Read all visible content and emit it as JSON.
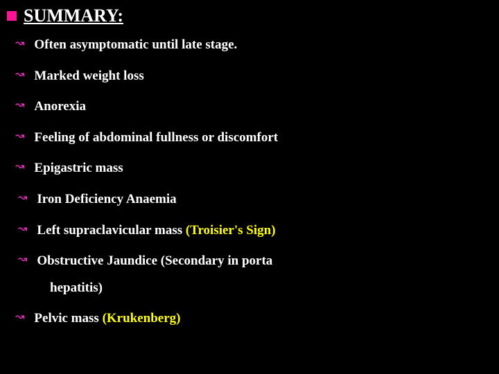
{
  "title": {
    "text": "SUMMARY:",
    "bullet_color": "#ff1493",
    "text_color": "#ffffff",
    "fontsize": 26,
    "underline": true
  },
  "bullet": {
    "glyph": "↝",
    "color": "#ff33cc",
    "fontsize": 16
  },
  "items": [
    {
      "text": "Often asymptomatic until late stage.",
      "yellow": null,
      "indent": false
    },
    {
      "text": "Marked weight loss",
      "yellow": null,
      "indent": false
    },
    {
      "text": "Anorexia",
      "yellow": null,
      "indent": false
    },
    {
      "text": "Feeling of abdominal fullness or discomfort",
      "yellow": null,
      "indent": false
    },
    {
      "text": "Epigastric mass",
      "yellow": null,
      "indent": false
    },
    {
      "text": " Iron Deficiency Anaemia",
      "yellow": null,
      "indent": true
    },
    {
      "text": " Left supraclavicular mass ",
      "yellow": "(Troisier's Sign)",
      "indent": true
    },
    {
      "text": " Obstructive Jaundice (Secondary in porta",
      "yellow": null,
      "indent": true,
      "continuation": "hepatitis)"
    },
    {
      "text": "Pelvic mass ",
      "yellow": "(Krukenberg)",
      "indent": false
    }
  ],
  "style": {
    "background_color": "#000000",
    "text_color": "#ffffff",
    "highlight_color": "#ffff00",
    "item_fontsize": 19,
    "item_fontweight": "bold",
    "font_family": "Garamond, Times New Roman, serif"
  }
}
